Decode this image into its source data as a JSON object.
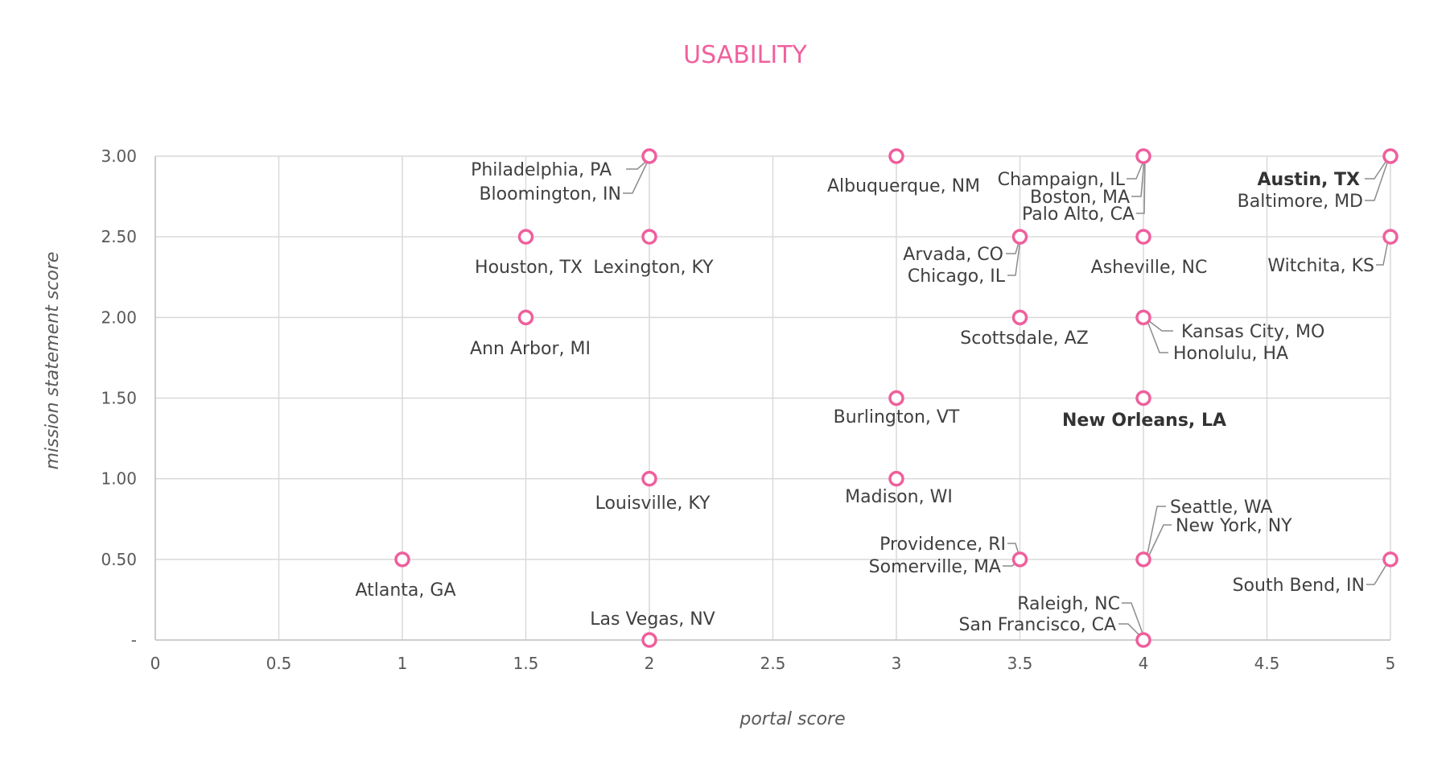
{
  "chart_data": {
    "type": "scatter",
    "title": "USABILITY",
    "xlabel": "portal score",
    "ylabel": "mission statement score",
    "xlim": [
      0,
      5
    ],
    "ylim": [
      0,
      3
    ],
    "x_ticks": [
      "0",
      "0.5",
      "1",
      "1.5",
      "2",
      "2.5",
      "3",
      "3.5",
      "4",
      "4.5",
      "5"
    ],
    "y_ticks": [
      "-",
      "0.50",
      "1.00",
      "1.50",
      "2.00",
      "2.50",
      "3.00"
    ],
    "grid": true,
    "accent_color": "#ef5f9c",
    "points": [
      {
        "x": 2,
        "y": 3,
        "labels": [
          {
            "text": "Philadelphia, PA",
            "bold": false
          },
          {
            "text": "Bloomington, IN",
            "bold": false
          }
        ]
      },
      {
        "x": 3,
        "y": 3,
        "labels": [
          {
            "text": "Albuquerque, NM",
            "bold": false
          }
        ]
      },
      {
        "x": 4,
        "y": 3,
        "labels": [
          {
            "text": "Champaign, IL",
            "bold": false
          },
          {
            "text": "Boston, MA",
            "bold": false
          },
          {
            "text": "Palo Alto, CA",
            "bold": false
          }
        ]
      },
      {
        "x": 5,
        "y": 3,
        "labels": [
          {
            "text": "Austin, TX",
            "bold": true
          },
          {
            "text": "Baltimore, MD",
            "bold": false
          }
        ]
      },
      {
        "x": 1.5,
        "y": 2.5,
        "labels": [
          {
            "text": "Houston, TX",
            "bold": false
          }
        ]
      },
      {
        "x": 2,
        "y": 2.5,
        "labels": [
          {
            "text": "Lexington, KY",
            "bold": false
          }
        ]
      },
      {
        "x": 3.5,
        "y": 2.5,
        "labels": [
          {
            "text": "Arvada, CO",
            "bold": false
          },
          {
            "text": "Chicago, IL",
            "bold": false
          }
        ]
      },
      {
        "x": 4,
        "y": 2.5,
        "labels": [
          {
            "text": "Asheville, NC",
            "bold": false
          }
        ]
      },
      {
        "x": 5,
        "y": 2.5,
        "labels": [
          {
            "text": "Witchita, KS",
            "bold": false
          }
        ]
      },
      {
        "x": 1.5,
        "y": 2,
        "labels": [
          {
            "text": "Ann Arbor, MI",
            "bold": false
          }
        ]
      },
      {
        "x": 3.5,
        "y": 2,
        "labels": [
          {
            "text": "Scottsdale, AZ",
            "bold": false
          }
        ]
      },
      {
        "x": 4,
        "y": 2,
        "labels": [
          {
            "text": "Kansas City, MO",
            "bold": false
          },
          {
            "text": "Honolulu, HA",
            "bold": false
          }
        ]
      },
      {
        "x": 3,
        "y": 1.5,
        "labels": [
          {
            "text": "Burlington, VT",
            "bold": false
          }
        ]
      },
      {
        "x": 4,
        "y": 1.5,
        "labels": [
          {
            "text": "New Orleans, LA",
            "bold": true
          }
        ]
      },
      {
        "x": 2,
        "y": 1,
        "labels": [
          {
            "text": "Louisville, KY",
            "bold": false
          }
        ]
      },
      {
        "x": 3,
        "y": 1,
        "labels": [
          {
            "text": "Madison, WI",
            "bold": false
          }
        ]
      },
      {
        "x": 1,
        "y": 0.5,
        "labels": [
          {
            "text": "Atlanta, GA",
            "bold": false
          }
        ]
      },
      {
        "x": 3.5,
        "y": 0.5,
        "labels": [
          {
            "text": "Providence, RI",
            "bold": false
          },
          {
            "text": "Somerville, MA",
            "bold": false
          }
        ]
      },
      {
        "x": 4,
        "y": 0.5,
        "labels": [
          {
            "text": "Seattle, WA",
            "bold": false
          },
          {
            "text": "New York, NY",
            "bold": false
          }
        ]
      },
      {
        "x": 5,
        "y": 0.5,
        "labels": [
          {
            "text": "South Bend, IN",
            "bold": false
          }
        ]
      },
      {
        "x": 2,
        "y": 0,
        "labels": [
          {
            "text": "Las Vegas, NV",
            "bold": false
          }
        ]
      },
      {
        "x": 4,
        "y": 0,
        "labels": [
          {
            "text": "Raleigh, NC",
            "bold": false
          },
          {
            "text": "San Francisco, CA",
            "bold": false
          }
        ]
      }
    ]
  }
}
